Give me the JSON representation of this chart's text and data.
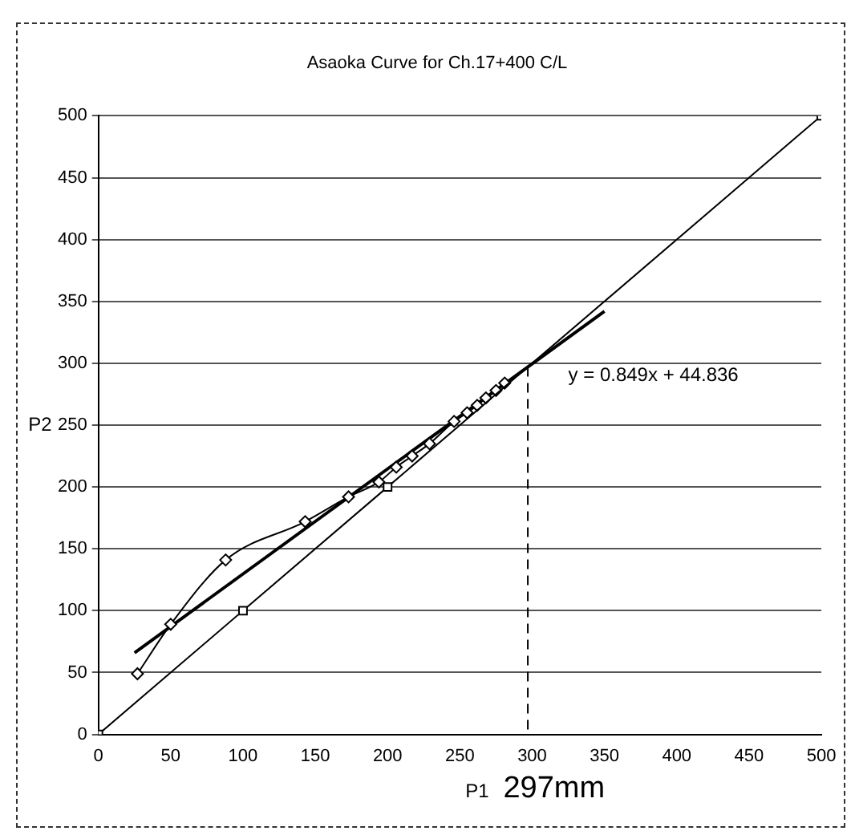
{
  "chart_data": {
    "type": "scatter",
    "title": "Asaoka Curve for Ch.17+400 C/L",
    "xlabel": "P1",
    "ylabel": "P2",
    "xlim": [
      0,
      500
    ],
    "ylim": [
      0,
      500
    ],
    "xticks": [
      0,
      50,
      100,
      150,
      200,
      250,
      300,
      350,
      400,
      450,
      500
    ],
    "yticks": [
      0,
      50,
      100,
      150,
      200,
      250,
      300,
      350,
      400,
      450,
      500
    ],
    "grid": "y",
    "legend": false,
    "series": [
      {
        "type": "line",
        "color": "#000000",
        "marker": "square",
        "x": [
          0,
          100,
          200,
          500
        ],
        "values": [
          0,
          100,
          200,
          500
        ]
      },
      {
        "type": "line",
        "color": "#000000",
        "marker": "diamond",
        "x": [
          27,
          50,
          88,
          143,
          173,
          194,
          206,
          217,
          229,
          246,
          255,
          262,
          268,
          275,
          281
        ],
        "values": [
          49,
          89,
          141,
          172,
          192,
          204,
          216,
          225,
          235,
          253,
          260,
          266,
          272,
          278,
          284
        ]
      },
      {
        "type": "line",
        "color": "#000000",
        "marker": "none",
        "x": [
          25,
          350
        ],
        "values": [
          66,
          342
        ]
      }
    ],
    "ref_lines": [
      {
        "axis": "x",
        "value": 297,
        "line_style": "dashed"
      }
    ],
    "annotations": [
      "y = 0.849x + 44.836",
      "297mm"
    ]
  }
}
